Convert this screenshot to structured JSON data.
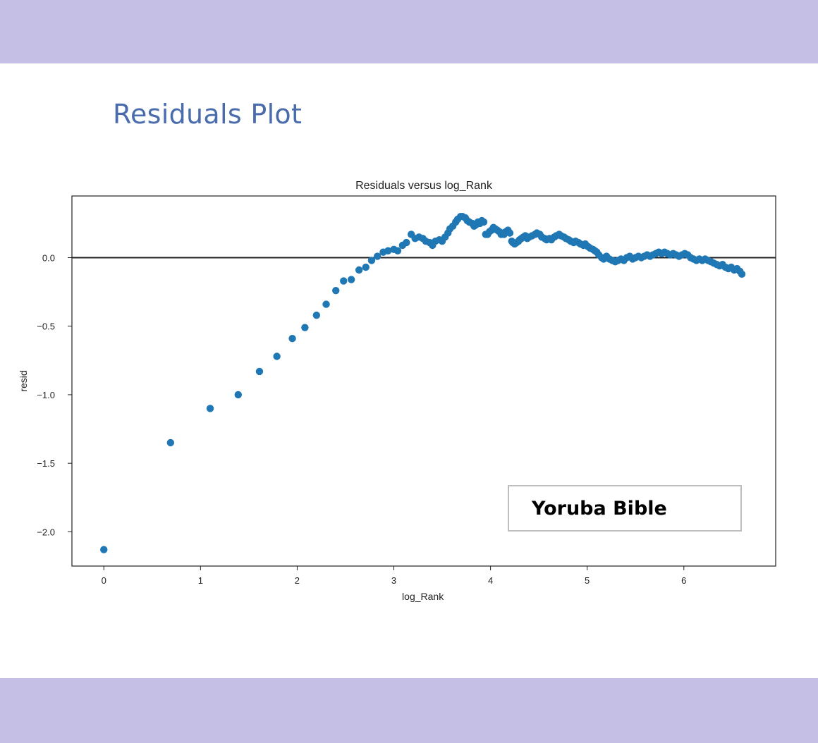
{
  "slide": {
    "title": "Residuals Plot",
    "band_color": "#c6bfe5",
    "title_color": "#4a6cad"
  },
  "annotation": {
    "text": "Yoruba Bible"
  },
  "chart_data": {
    "type": "scatter",
    "title": "Residuals versus log_Rank",
    "xlabel": "log_Rank",
    "ylabel": "resid",
    "xlim": [
      -0.33,
      6.95
    ],
    "ylim": [
      -2.25,
      0.45
    ],
    "xticks": [
      0,
      1,
      2,
      3,
      4,
      5,
      6
    ],
    "yticks": [
      0.0,
      -0.5,
      -1.0,
      -1.5,
      -2.0
    ],
    "ytick_labels": [
      "0.0",
      "−0.5",
      "−1.0",
      "−1.5",
      "−2.0"
    ],
    "grid": false,
    "reference_line": {
      "y": 0.0,
      "color": "#222222"
    },
    "marker_color": "#1f77b4",
    "series": [
      {
        "points": [
          [
            0.0,
            -2.13
          ],
          [
            0.69,
            -1.35
          ],
          [
            1.1,
            -1.1
          ],
          [
            1.39,
            -1.0
          ],
          [
            1.61,
            -0.83
          ],
          [
            1.79,
            -0.72
          ],
          [
            1.95,
            -0.59
          ],
          [
            2.08,
            -0.51
          ],
          [
            2.2,
            -0.42
          ],
          [
            2.3,
            -0.34
          ],
          [
            2.4,
            -0.24
          ],
          [
            2.48,
            -0.17
          ],
          [
            2.56,
            -0.16
          ],
          [
            2.64,
            -0.09
          ],
          [
            2.71,
            -0.07
          ],
          [
            2.77,
            -0.02
          ],
          [
            2.83,
            0.01
          ],
          [
            2.89,
            0.04
          ],
          [
            2.94,
            0.05
          ],
          [
            3.0,
            0.06
          ],
          [
            3.04,
            0.05
          ],
          [
            3.09,
            0.09
          ],
          [
            3.13,
            0.11
          ],
          [
            3.18,
            0.17
          ],
          [
            3.22,
            0.14
          ],
          [
            3.26,
            0.15
          ],
          [
            3.3,
            0.14
          ],
          [
            3.33,
            0.12
          ],
          [
            3.37,
            0.11
          ],
          [
            3.4,
            0.09
          ],
          [
            3.43,
            0.12
          ],
          [
            3.47,
            0.13
          ],
          [
            3.5,
            0.12
          ],
          [
            3.53,
            0.15
          ],
          [
            3.56,
            0.18
          ],
          [
            3.58,
            0.21
          ],
          [
            3.61,
            0.23
          ],
          [
            3.64,
            0.26
          ],
          [
            3.66,
            0.28
          ],
          [
            3.69,
            0.3
          ],
          [
            3.71,
            0.3
          ],
          [
            3.74,
            0.29
          ],
          [
            3.76,
            0.27
          ],
          [
            3.78,
            0.26
          ],
          [
            3.81,
            0.25
          ],
          [
            3.83,
            0.23
          ],
          [
            3.85,
            0.24
          ],
          [
            3.87,
            0.26
          ],
          [
            3.89,
            0.25
          ],
          [
            3.91,
            0.27
          ],
          [
            3.93,
            0.26
          ],
          [
            3.95,
            0.17
          ],
          [
            3.97,
            0.17
          ],
          [
            3.99,
            0.19
          ],
          [
            4.01,
            0.2
          ],
          [
            4.03,
            0.22
          ],
          [
            4.05,
            0.21
          ],
          [
            4.07,
            0.2
          ],
          [
            4.09,
            0.19
          ],
          [
            4.11,
            0.17
          ],
          [
            4.13,
            0.18
          ],
          [
            4.14,
            0.17
          ],
          [
            4.16,
            0.19
          ],
          [
            4.18,
            0.2
          ],
          [
            4.2,
            0.18
          ],
          [
            4.22,
            0.12
          ],
          [
            4.23,
            0.11
          ],
          [
            4.25,
            0.1
          ],
          [
            4.27,
            0.11
          ],
          [
            4.29,
            0.12
          ],
          [
            4.3,
            0.13
          ],
          [
            4.32,
            0.14
          ],
          [
            4.34,
            0.15
          ],
          [
            4.36,
            0.16
          ],
          [
            4.38,
            0.14
          ],
          [
            4.4,
            0.15
          ],
          [
            4.43,
            0.16
          ],
          [
            4.46,
            0.17
          ],
          [
            4.48,
            0.18
          ],
          [
            4.51,
            0.17
          ],
          [
            4.53,
            0.15
          ],
          [
            4.56,
            0.14
          ],
          [
            4.58,
            0.13
          ],
          [
            4.61,
            0.14
          ],
          [
            4.63,
            0.13
          ],
          [
            4.66,
            0.15
          ],
          [
            4.68,
            0.16
          ],
          [
            4.71,
            0.17
          ],
          [
            4.73,
            0.16
          ],
          [
            4.76,
            0.15
          ],
          [
            4.78,
            0.14
          ],
          [
            4.81,
            0.13
          ],
          [
            4.83,
            0.12
          ],
          [
            4.86,
            0.11
          ],
          [
            4.88,
            0.12
          ],
          [
            4.91,
            0.11
          ],
          [
            4.93,
            0.1
          ],
          [
            4.96,
            0.09
          ],
          [
            4.98,
            0.1
          ],
          [
            5.01,
            0.08
          ],
          [
            5.03,
            0.07
          ],
          [
            5.06,
            0.06
          ],
          [
            5.08,
            0.05
          ],
          [
            5.1,
            0.04
          ],
          [
            5.12,
            0.02
          ],
          [
            5.15,
            0.0
          ],
          [
            5.17,
            -0.01
          ],
          [
            5.2,
            0.01
          ],
          [
            5.23,
            -0.01
          ],
          [
            5.26,
            -0.02
          ],
          [
            5.29,
            -0.03
          ],
          [
            5.32,
            -0.02
          ],
          [
            5.35,
            -0.01
          ],
          [
            5.38,
            -0.02
          ],
          [
            5.41,
            0.0
          ],
          [
            5.44,
            0.01
          ],
          [
            5.47,
            -0.01
          ],
          [
            5.5,
            0.0
          ],
          [
            5.53,
            0.01
          ],
          [
            5.56,
            0.0
          ],
          [
            5.59,
            0.01
          ],
          [
            5.62,
            0.02
          ],
          [
            5.65,
            0.01
          ],
          [
            5.68,
            0.02
          ],
          [
            5.71,
            0.03
          ],
          [
            5.74,
            0.04
          ],
          [
            5.77,
            0.03
          ],
          [
            5.8,
            0.04
          ],
          [
            5.83,
            0.03
          ],
          [
            5.86,
            0.02
          ],
          [
            5.89,
            0.03
          ],
          [
            5.92,
            0.02
          ],
          [
            5.95,
            0.01
          ],
          [
            5.98,
            0.02
          ],
          [
            6.01,
            0.03
          ],
          [
            6.04,
            0.02
          ],
          [
            6.07,
            0.0
          ],
          [
            6.1,
            -0.01
          ],
          [
            6.13,
            -0.02
          ],
          [
            6.16,
            -0.01
          ],
          [
            6.19,
            -0.02
          ],
          [
            6.22,
            -0.01
          ],
          [
            6.25,
            -0.02
          ],
          [
            6.28,
            -0.03
          ],
          [
            6.31,
            -0.04
          ],
          [
            6.34,
            -0.05
          ],
          [
            6.37,
            -0.06
          ],
          [
            6.4,
            -0.05
          ],
          [
            6.43,
            -0.07
          ],
          [
            6.46,
            -0.08
          ],
          [
            6.49,
            -0.07
          ],
          [
            6.52,
            -0.09
          ],
          [
            6.55,
            -0.08
          ],
          [
            6.58,
            -0.1
          ],
          [
            6.6,
            -0.12
          ]
        ]
      }
    ]
  }
}
